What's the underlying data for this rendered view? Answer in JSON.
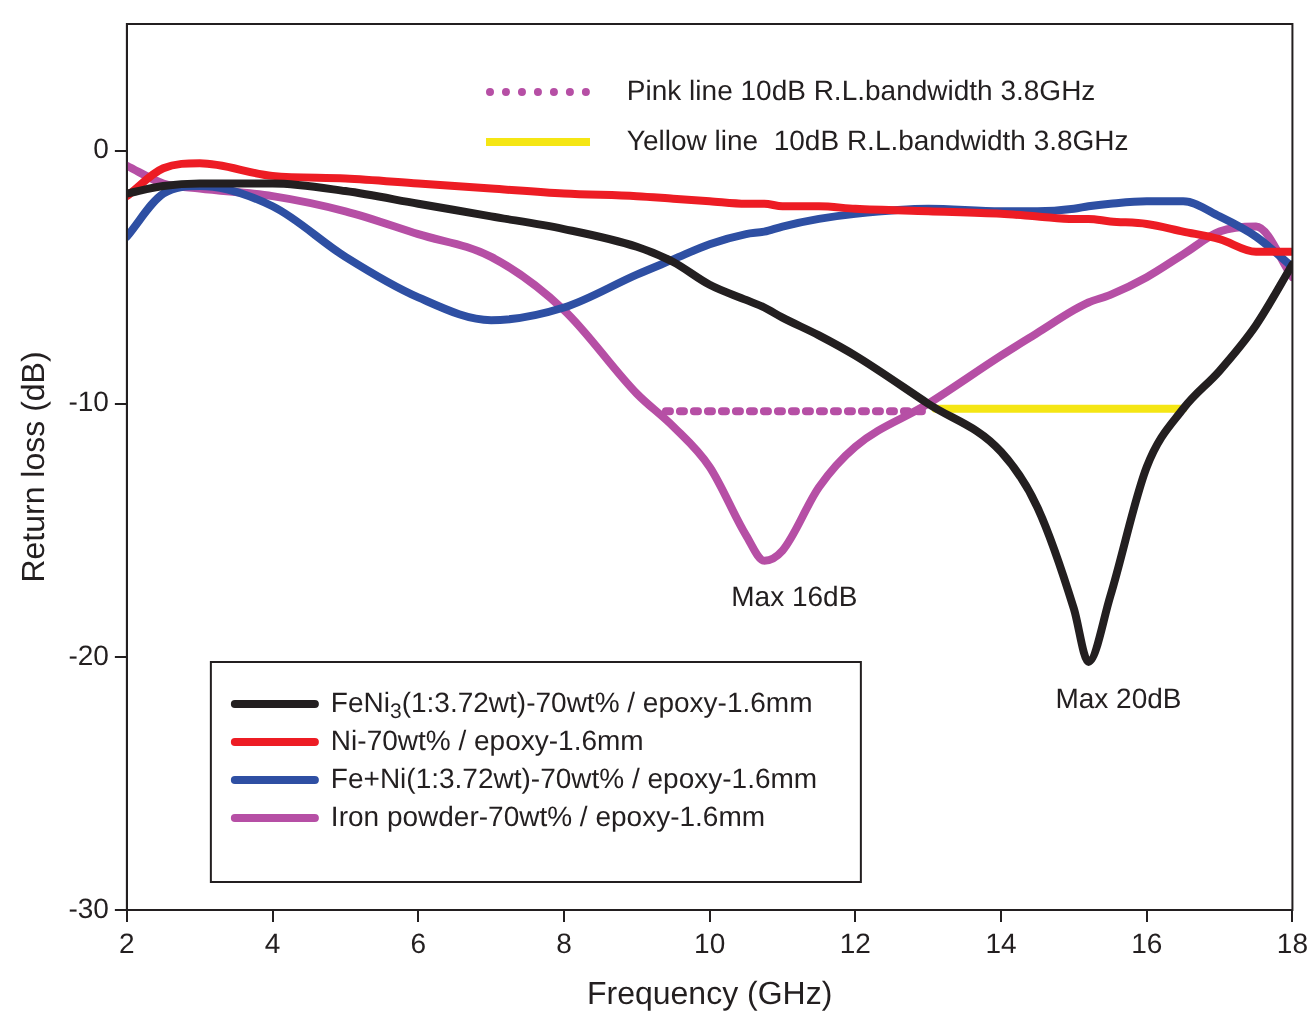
{
  "chart_data": {
    "type": "line",
    "xlabel": "Frequency (GHz)",
    "ylabel": "Return loss (dB)",
    "xlim": [
      2,
      18
    ],
    "xticks": [
      2,
      4,
      6,
      8,
      10,
      12,
      14,
      16,
      18
    ],
    "ylim": [
      -30,
      5
    ],
    "yticks": [
      -30,
      -20,
      -10,
      0
    ],
    "grid": false,
    "legend": "bottom left",
    "marker": "none",
    "line_style": "solid",
    "x": [
      2,
      2.5,
      3,
      4,
      5,
      6,
      7,
      8,
      9,
      9.5,
      10,
      10.5,
      10.75,
      11,
      11.5,
      12,
      13,
      14,
      14.5,
      15,
      15.2,
      15.5,
      16,
      16.5,
      17,
      17.5,
      18
    ],
    "series": [
      {
        "name": "FeNi$_{3}$(1:3.72wt)-70wt% / epoxy-1.6mm",
        "color": "#231f20",
        "values": [
          -1.7,
          -1.4,
          -1.3,
          -1.3,
          -1.6,
          -2.1,
          -2.6,
          -3.1,
          -3.8,
          -4.4,
          -5.3,
          -5.9,
          -6.2,
          -6.6,
          -7.3,
          -8.1,
          -10,
          -11.9,
          -14.1,
          -18.1,
          -20.2,
          -17.6,
          -12.5,
          -10.2,
          -8.7,
          -6.9,
          -4.5
        ]
      },
      {
        "name": "Ni-70wt% / epoxy-1.6mm",
        "color": "#ed1c24",
        "values": [
          -1.8,
          -0.7,
          -0.5,
          -1.0,
          -1.1,
          -1.3,
          -1.5,
          -1.7,
          -1.8,
          -1.9,
          -2.0,
          -2.1,
          -2.1,
          -2.2,
          -2.2,
          -2.3,
          -2.4,
          -2.5,
          -2.6,
          -2.7,
          -2.7,
          -2.8,
          -2.9,
          -3.2,
          -3.5,
          -4.0,
          -4.0
        ]
      },
      {
        "name": "Fe+Ni(1:3.72wt)-70wt% / epoxy-1.6mm",
        "color": "#2e4fa3",
        "values": [
          -3.4,
          -1.7,
          -1.4,
          -2.2,
          -4.2,
          -5.8,
          -6.7,
          -6.2,
          -4.9,
          -4.3,
          -3.7,
          -3.3,
          -3.2,
          -3.0,
          -2.7,
          -2.5,
          -2.3,
          -2.4,
          -2.4,
          -2.3,
          -2.2,
          -2.1,
          -2.0,
          -2.0,
          -2.6,
          -3.4,
          -4.6
        ]
      },
      {
        "name": "Iron powder-70wt% / epoxy-1.6mm",
        "color": "#b64fa5",
        "values": [
          -0.6,
          -1.3,
          -1.5,
          -1.8,
          -2.4,
          -3.3,
          -4.2,
          -6.3,
          -9.6,
          -10.9,
          -12.5,
          -15.2,
          -16.2,
          -15.8,
          -13.3,
          -11.7,
          -10.0,
          -8.1,
          -7.2,
          -6.3,
          -6.0,
          -5.7,
          -5.0,
          -4.1,
          -3.2,
          -3.0,
          -5.0
        ]
      },
      {
        "color": "#b64fa5",
        "line_style": "dotted",
        "x": [
          9.4,
          13
        ],
        "values": [
          -10.3,
          -10.3
        ]
      },
      {
        "color": "#f5e614",
        "x": [
          13.1,
          16.5
        ],
        "values": [
          -10.2,
          -10.2
        ]
      }
    ],
    "annotations": [
      "Pink line 10dB R.L.bandwidth 3.8GHz",
      "Yellow line  10dB R.L.bandwidth 3.8GHz",
      {
        "text": "Max 16dB",
        "x": 10.75,
        "y": -16.2
      },
      {
        "text": "Max 20dB",
        "x": 15.2,
        "y": -20.2
      }
    ]
  }
}
